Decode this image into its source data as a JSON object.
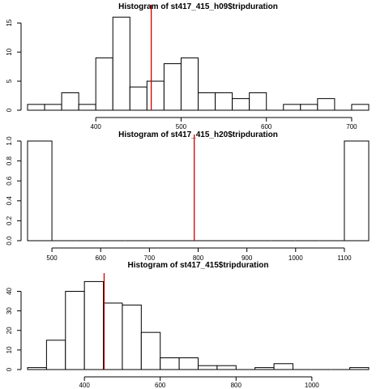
{
  "chart_data": [
    {
      "type": "bar",
      "title": "Histogram of st417_415_h09$tripduration",
      "xlabel": "",
      "ylabel": "",
      "bin_width": 20,
      "bins_start": [
        320,
        340,
        360,
        380,
        400,
        420,
        440,
        460,
        480,
        500,
        520,
        540,
        560,
        580,
        600,
        620,
        640,
        660,
        680,
        700
      ],
      "values": [
        1,
        1,
        3,
        1,
        9,
        16,
        4,
        5,
        8,
        9,
        3,
        3,
        2,
        3,
        0,
        1,
        1,
        2,
        0,
        1
      ],
      "xlim": [
        320,
        720
      ],
      "ylim": [
        0,
        17
      ],
      "xticks": [
        400,
        500,
        600,
        700
      ],
      "yticks": [
        0,
        5,
        10,
        15
      ],
      "mean_line": 465,
      "grid": false
    },
    {
      "type": "bar",
      "title": "Histogram of st417_415_h20$tripduration",
      "xlabel": "",
      "ylabel": "",
      "bin_width": 50,
      "bins_start": [
        450,
        500,
        550,
        600,
        650,
        700,
        750,
        800,
        850,
        900,
        950,
        1000,
        1050,
        1100
      ],
      "values": [
        1,
        0,
        0,
        0,
        0,
        0,
        0,
        0,
        0,
        0,
        0,
        0,
        0,
        1
      ],
      "xlim": [
        450,
        1150
      ],
      "ylim": [
        0,
        1
      ],
      "xticks": [
        500,
        600,
        700,
        800,
        900,
        1000,
        1100
      ],
      "yticks": [
        0.0,
        0.2,
        0.4,
        0.6,
        0.8,
        1.0
      ],
      "mean_line": 792,
      "grid": false
    },
    {
      "type": "bar",
      "title": "Histogram of st417_415$tripduration",
      "xlabel": "",
      "ylabel": "",
      "bin_width": 50,
      "bins_start": [
        250,
        300,
        350,
        400,
        450,
        500,
        550,
        600,
        650,
        700,
        750,
        800,
        850,
        900,
        950,
        1000,
        1050,
        1100
      ],
      "values": [
        1,
        15,
        40,
        45,
        34,
        33,
        19,
        6,
        6,
        2,
        2,
        0,
        1,
        3,
        0,
        0,
        0,
        1
      ],
      "xlim": [
        250,
        1150
      ],
      "ylim": [
        0,
        46
      ],
      "xticks": [
        400,
        600,
        800,
        1000
      ],
      "yticks": [
        0,
        10,
        20,
        30,
        40
      ],
      "mean_line": 452,
      "grid": false
    }
  ],
  "colors": {
    "bar_fill": "#ffffff",
    "bar_stroke": "#000000",
    "mean_line": "#cc0000"
  }
}
